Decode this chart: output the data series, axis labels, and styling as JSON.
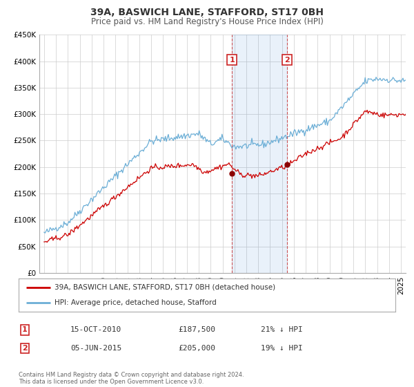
{
  "title": "39A, BASWICH LANE, STAFFORD, ST17 0BH",
  "subtitle": "Price paid vs. HM Land Registry's House Price Index (HPI)",
  "ylim": [
    0,
    450000
  ],
  "yticks": [
    0,
    50000,
    100000,
    150000,
    200000,
    250000,
    300000,
    350000,
    400000,
    450000
  ],
  "ytick_labels": [
    "£0",
    "£50K",
    "£100K",
    "£150K",
    "£200K",
    "£250K",
    "£300K",
    "£350K",
    "£400K",
    "£450K"
  ],
  "xlim_start": 1994.6,
  "xlim_end": 2025.4,
  "hpi_color": "#6baed6",
  "price_color": "#cc0000",
  "marker1_date": 2010.79,
  "marker1_price": 187500,
  "marker2_date": 2015.42,
  "marker2_price": 205000,
  "shade_start": 2010.79,
  "shade_end": 2015.42,
  "legend_line1": "39A, BASWICH LANE, STAFFORD, ST17 0BH (detached house)",
  "legend_line2": "HPI: Average price, detached house, Stafford",
  "table_row1_num": "1",
  "table_row1_date": "15-OCT-2010",
  "table_row1_price": "£187,500",
  "table_row1_pct": "21% ↓ HPI",
  "table_row2_num": "2",
  "table_row2_date": "05-JUN-2015",
  "table_row2_price": "£205,000",
  "table_row2_pct": "19% ↓ HPI",
  "footer_text": "Contains HM Land Registry data © Crown copyright and database right 2024.\nThis data is licensed under the Open Government Licence v3.0.",
  "background_color": "#ffffff",
  "grid_color": "#cccccc",
  "title_fontsize": 10,
  "subtitle_fontsize": 8.5,
  "tick_fontsize": 7.5,
  "legend_fontsize": 7.5,
  "table_fontsize": 8,
  "footer_fontsize": 6
}
